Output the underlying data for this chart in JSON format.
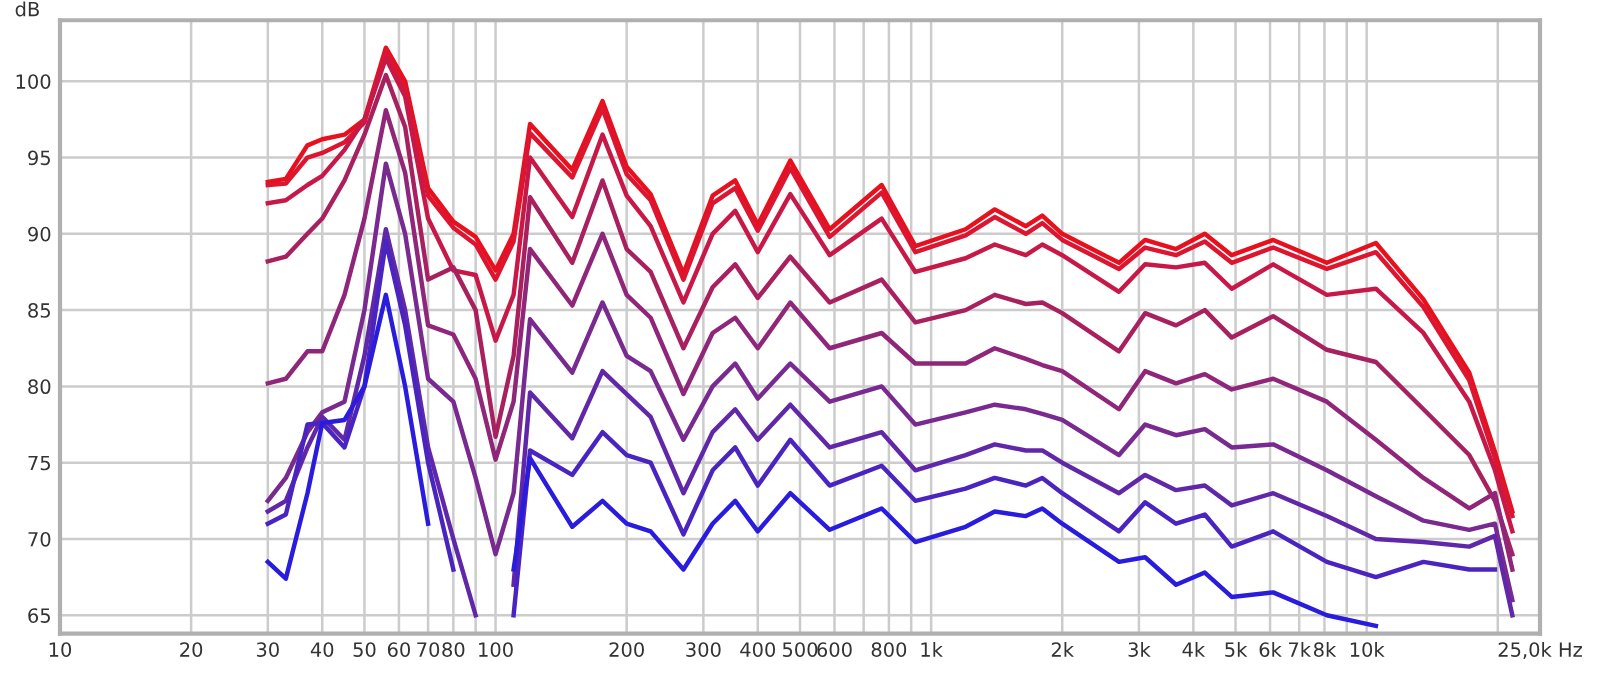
{
  "chart_data": {
    "type": "line",
    "ylabel": "dB",
    "x": [
      30,
      33,
      37,
      40,
      45,
      50,
      56,
      62,
      70,
      80,
      90,
      100,
      110,
      120,
      150,
      176,
      200,
      227,
      270,
      315,
      355,
      400,
      475,
      585,
      770,
      920,
      1200,
      1400,
      1650,
      1800,
      2000,
      2700,
      3100,
      3650,
      4250,
      4900,
      6100,
      8100,
      10500,
      13500,
      17200,
      19700,
      21600
    ],
    "series": [
      {
        "color": "#e8101c",
        "values": [
          93.4,
          93.6,
          95.8,
          96.2,
          96.5,
          97.5,
          102.2,
          100,
          93,
          90.8,
          89.8,
          87.6,
          90,
          97.2,
          94.2,
          98.7,
          94.4,
          92.6,
          87.4,
          92.5,
          93.5,
          90.6,
          94.8,
          90.3,
          93.2,
          89.2,
          90.3,
          91.6,
          90.5,
          91.2,
          90.0,
          88.1,
          89.6,
          89.0,
          90.0,
          88.6,
          89.6,
          88.1,
          89.4,
          85.7,
          80.9,
          75.7,
          71.8
        ]
      },
      {
        "color": "#dc1530",
        "values": [
          93.2,
          93.3,
          95.0,
          95.3,
          96.0,
          97.3,
          102.0,
          99.5,
          92.5,
          90.4,
          89.3,
          87.0,
          89.5,
          96.6,
          93.7,
          98.2,
          93.9,
          92.2,
          87.0,
          92.0,
          93.0,
          90.2,
          94.3,
          89.8,
          92.7,
          88.8,
          89.9,
          91.1,
          90.0,
          90.7,
          89.6,
          87.7,
          89.1,
          88.6,
          89.5,
          88.1,
          89.1,
          87.7,
          88.8,
          85.2,
          80.4,
          75.3,
          71.5
        ]
      },
      {
        "color": "#c81848",
        "values": [
          92.0,
          92.2,
          93.2,
          93.8,
          95.5,
          97.5,
          101.5,
          99,
          91,
          87.6,
          87.3,
          83,
          86,
          95.0,
          91.1,
          96.5,
          92.5,
          90.5,
          85.5,
          90.0,
          91.5,
          88.8,
          92.6,
          88.6,
          91.0,
          87.5,
          88.4,
          89.3,
          88.6,
          89.3,
          88.6,
          86.2,
          88.0,
          87.8,
          88.1,
          86.4,
          88.0,
          86.0,
          86.4,
          83.5,
          79.0,
          74.5,
          70.5
        ]
      },
      {
        "color": "#a8205e",
        "values": [
          88.2,
          88.5,
          90,
          91,
          93.5,
          96.5,
          100.4,
          97,
          87,
          87.8,
          85,
          76.7,
          82,
          92.4,
          88.1,
          93.5,
          89,
          87.5,
          82.5,
          86.5,
          88,
          85.8,
          88.5,
          85.5,
          87,
          84.2,
          85,
          86,
          85.4,
          85.5,
          84.8,
          82.3,
          84.8,
          84.0,
          85.0,
          83.2,
          84.6,
          82.4,
          81.6,
          78.5,
          75.5,
          72.5,
          69.0
        ]
      },
      {
        "color": "#90267a",
        "values": [
          80.2,
          80.5,
          82.3,
          82.3,
          86,
          91,
          98.1,
          94,
          84,
          83.4,
          80.5,
          75.2,
          79,
          89.0,
          85.3,
          90,
          86,
          84.5,
          79.5,
          83.5,
          84.5,
          82.5,
          85.5,
          82.5,
          83.5,
          81.5,
          81.5,
          82.5,
          81.8,
          81.4,
          81.0,
          78.5,
          81.0,
          80.2,
          80.8,
          79.8,
          80.5,
          79.0,
          76.5,
          74.0,
          72.0,
          73.0,
          68.0
        ]
      },
      {
        "color": "#782a90",
        "values": [
          72.5,
          74,
          77,
          78.3,
          79,
          85,
          94.6,
          90,
          80.5,
          79,
          74,
          69,
          73,
          84.4,
          80.9,
          85.5,
          82,
          81,
          76.5,
          80,
          81.5,
          79.2,
          81.5,
          79,
          80,
          77.5,
          78.3,
          78.8,
          78.5,
          78.2,
          77.8,
          75.5,
          77.5,
          76.8,
          77.2,
          76.0,
          76.2,
          74.5,
          72.8,
          71.2,
          70.6,
          71.0,
          66.0
        ]
      },
      {
        "color": "#6028a8",
        "values": [
          71.8,
          72.5,
          76,
          78.0,
          76.5,
          82,
          90.3,
          85,
          76,
          70,
          65,
          null,
          67,
          79.6,
          76.6,
          81,
          79.5,
          78,
          73,
          77,
          78.5,
          76.5,
          78.8,
          76,
          77,
          74.5,
          75.5,
          76.2,
          75.8,
          75.8,
          75.0,
          73,
          74.2,
          73.2,
          73.5,
          72.2,
          73.0,
          71.5,
          70.0,
          69.8,
          69.5,
          70.2,
          65.0
        ]
      },
      {
        "color": "#4a24c0",
        "values": [
          71.0,
          71.6,
          77.5,
          77.6,
          76.0,
          80,
          89.5,
          84,
          75,
          68,
          null,
          null,
          65,
          75.8,
          74.2,
          77,
          75.5,
          75,
          70.3,
          74.5,
          76,
          73.5,
          76.5,
          73.5,
          74.8,
          72.5,
          73.3,
          74.0,
          73.5,
          74.0,
          73.0,
          70.5,
          72.4,
          71.0,
          71.6,
          69.5,
          70.5,
          68.5,
          67.5,
          68.5,
          68.0,
          68.0,
          null
        ]
      },
      {
        "color": "#2a1cdc",
        "values": [
          68.5,
          67.4,
          73,
          77.6,
          77.8,
          80,
          86.0,
          80,
          71,
          null,
          null,
          null,
          68,
          75.3,
          70.8,
          72.5,
          71,
          70.5,
          68,
          71,
          72.5,
          70.5,
          73,
          70.6,
          72,
          69.8,
          70.8,
          71.8,
          71.5,
          72.0,
          71.0,
          68.5,
          68.8,
          67.0,
          67.8,
          66.2,
          66.5,
          65.0,
          64.3,
          null,
          null,
          null,
          null
        ]
      }
    ],
    "log": "x",
    "xlim": [
      10,
      25000
    ],
    "ylim": [
      63.8,
      104
    ],
    "xticks": [
      10,
      20,
      30,
      40,
      50,
      60,
      70,
      80,
      {
        "value": 90,
        "label": null
      },
      100,
      200,
      300,
      400,
      500,
      600,
      {
        "value": 700,
        "label": null
      },
      800,
      {
        "value": 900,
        "label": null
      },
      {
        "value": 1000,
        "label": "1k"
      },
      {
        "value": 2000,
        "label": "2k"
      },
      {
        "value": 3000,
        "label": "3k"
      },
      {
        "value": 4000,
        "label": "4k"
      },
      {
        "value": 5000,
        "label": "5k"
      },
      {
        "value": 6000,
        "label": "6k"
      },
      {
        "value": 7000,
        "label": "7k"
      },
      {
        "value": 8000,
        "label": "8k"
      },
      {
        "value": 9000,
        "label": null
      },
      {
        "value": 10000,
        "label": "10k"
      },
      {
        "value": 20000,
        "label": null
      },
      {
        "value": 25000,
        "label": "25,0k Hz"
      }
    ],
    "yticks": [
      65,
      70,
      75,
      80,
      85,
      90,
      95,
      100
    ],
    "grid": true,
    "line_style": "solid",
    "marker": "none"
  }
}
